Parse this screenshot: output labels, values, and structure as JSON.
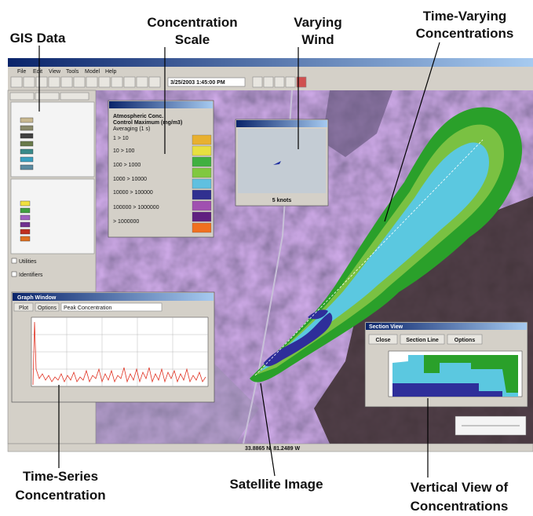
{
  "callouts": {
    "gis_data": "GIS Data",
    "concentration_scale": [
      "Concentration",
      "Scale"
    ],
    "varying_wind": [
      "Varying",
      "Wind"
    ],
    "time_varying": [
      "Time-Varying",
      "Concentrations"
    ],
    "time_series": [
      "Time-Series",
      "Concentration"
    ],
    "satellite_image": "Satellite Image",
    "vertical_view": [
      "Vertical View of",
      "Concentrations"
    ]
  },
  "menu": [
    "File",
    "Edit",
    "View",
    "Tools",
    "Model",
    "Help"
  ],
  "toolbar": {
    "datetime": "3/25/2003 1:45:00 PM"
  },
  "left_panel": {
    "checkboxes": [
      "Utilities",
      "Identifiers"
    ]
  },
  "concentration_window": {
    "heading": [
      "Atmospheric Conc.",
      "Control Maximum (mg/m3)",
      "Averaging (1 s)"
    ],
    "ranges": [
      "1 > 10",
      "10 > 100",
      "100 > 1000",
      "1000 > 10000",
      "10000 > 100000",
      "100000 > 1000000",
      "> 1000000"
    ]
  },
  "wind_window": {
    "speed": "5 knots"
  },
  "graph_window": {
    "title": "Graph Window",
    "buttons": [
      "Plot",
      "Options"
    ],
    "dropdown": "Peak Concentration"
  },
  "section_window": {
    "title": "Section View",
    "buttons": [
      "Close",
      "Section Line",
      "Options"
    ]
  },
  "status": "33.8865 N, 81.2489 W"
}
